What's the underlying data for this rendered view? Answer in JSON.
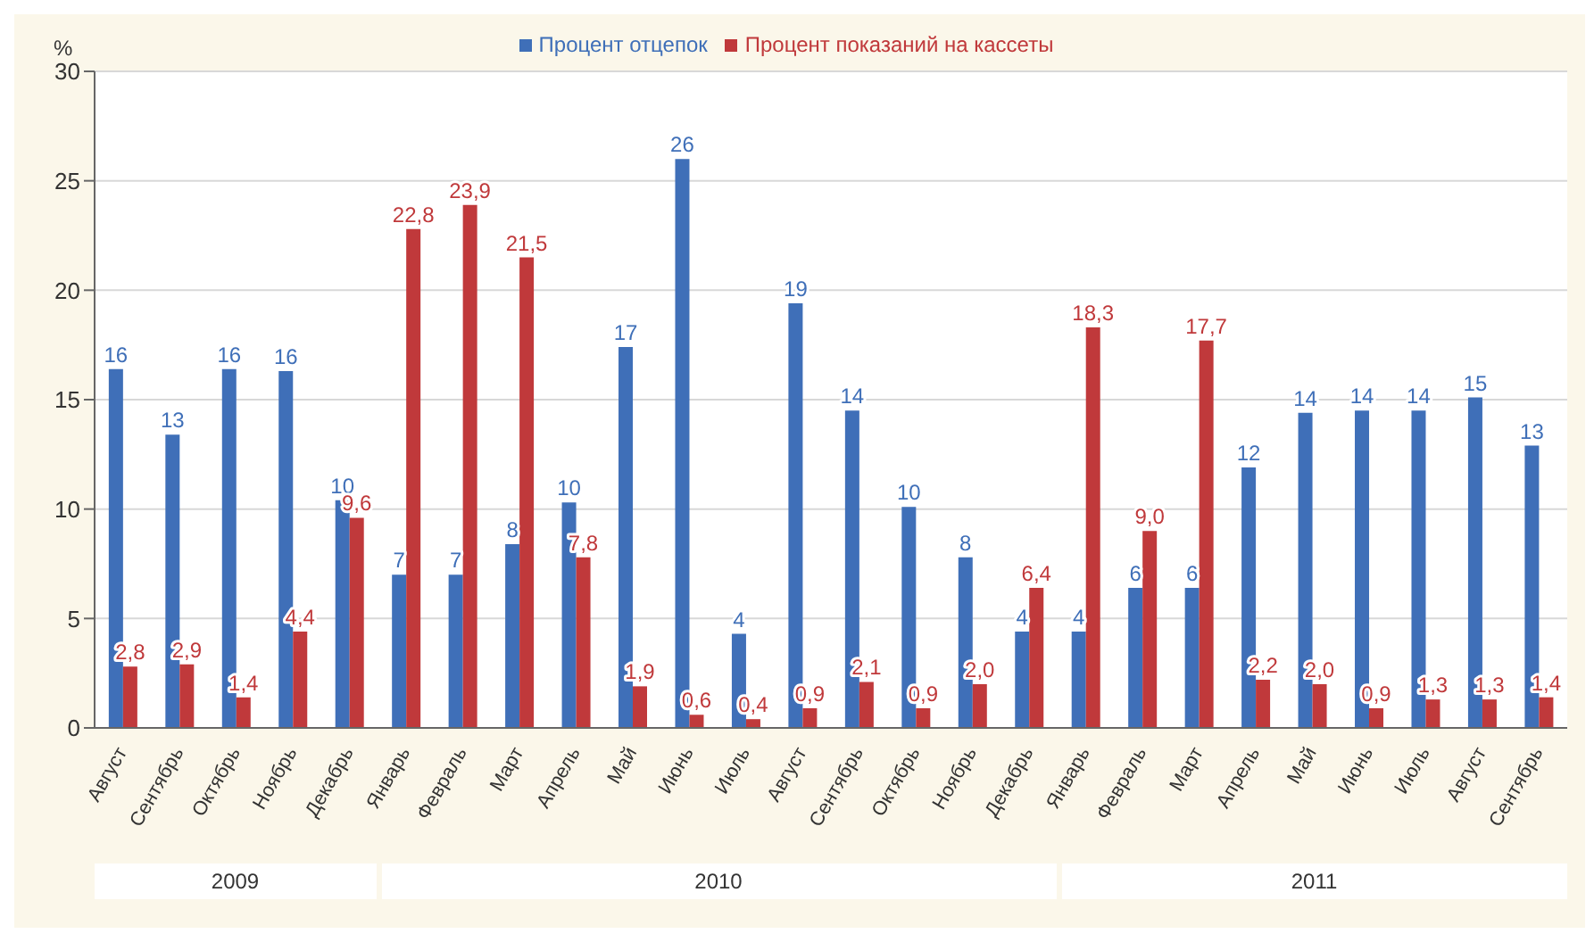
{
  "chart_data": {
    "type": "bar",
    "ylabel": "%",
    "categories": [
      "Август",
      "Сентябрь",
      "Октябрь",
      "Ноябрь",
      "Декабрь",
      "Январь",
      "Февраль",
      "Март",
      "Апрель",
      "Май",
      "Июнь",
      "Июль",
      "Август",
      "Сентябрь",
      "Октябрь",
      "Ноябрь",
      "Декабрь",
      "Январь",
      "Февраль",
      "Март",
      "Апрель",
      "Май",
      "Июнь",
      "Июль",
      "Август",
      "Сентябрь"
    ],
    "series": [
      {
        "name": "Процент отцепок",
        "color": "#3f6fb8",
        "values": [
          16.4,
          13.4,
          16.4,
          16.3,
          10.4,
          7.0,
          7.0,
          8.4,
          10.3,
          17.4,
          26.0,
          4.3,
          19.4,
          14.5,
          10.1,
          7.8,
          4.4,
          4.4,
          6.4,
          6.4,
          11.9,
          14.4,
          14.5,
          14.5,
          15.1,
          12.9
        ],
        "value_labels": [
          "16",
          "13",
          "16",
          "16",
          "10",
          "7",
          "7",
          "8",
          "10",
          "17",
          "26",
          "4",
          "19",
          "14",
          "10",
          "8",
          "4",
          "4",
          "6",
          "6",
          "12",
          "14",
          "14",
          "14",
          "15",
          "13"
        ]
      },
      {
        "name": "Процент показаний на кассеты",
        "color": "#c0393b",
        "values": [
          2.8,
          2.9,
          1.4,
          4.4,
          9.6,
          22.8,
          23.9,
          21.5,
          7.8,
          1.9,
          0.6,
          0.4,
          0.9,
          2.1,
          0.9,
          2.0,
          6.4,
          18.3,
          9.0,
          17.7,
          2.2,
          2.0,
          0.9,
          1.3,
          1.3,
          1.4
        ],
        "value_labels": [
          "2,8",
          "2,9",
          "1,4",
          "4,4",
          "9,6",
          "22,8",
          "23,9",
          "21,5",
          "7,8",
          "1,9",
          "0,6",
          "0,4",
          "0,9",
          "2,1",
          "0,9",
          "2,0",
          "6,4",
          "18,3",
          "9,0",
          "17,7",
          "2,2",
          "2,0",
          "0,9",
          "1,3",
          "1,3",
          "1,4"
        ]
      }
    ],
    "ylim": [
      0,
      30
    ],
    "yticks": [
      0,
      5,
      10,
      15,
      20,
      25,
      30
    ],
    "grid": "y",
    "legend": "top",
    "annotations": [
      "2009",
      "2010",
      "2011"
    ]
  }
}
